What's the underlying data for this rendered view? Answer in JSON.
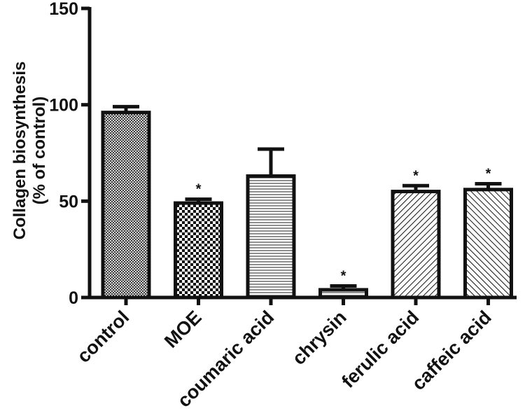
{
  "chart_data": {
    "type": "bar",
    "ylabel_lines": [
      "Collagen biosynthesis",
      "(% of control)"
    ],
    "ylim": [
      0,
      150
    ],
    "yticks": [
      0,
      50,
      100,
      150
    ],
    "categories": [
      "control",
      "MOE",
      "coumaric acid",
      "chrysin",
      "ferulic acid",
      "caffeic acid"
    ],
    "values": [
      96,
      49,
      63,
      4,
      55,
      56
    ],
    "error": [
      3,
      2,
      14,
      2,
      3,
      3
    ],
    "significance": [
      "",
      "*",
      "",
      "*",
      "*",
      "*"
    ],
    "patterns": [
      "crosshatch",
      "checker",
      "hlines",
      "hlines",
      "diag-up",
      "diag-down"
    ],
    "grid": false,
    "legend": false
  }
}
